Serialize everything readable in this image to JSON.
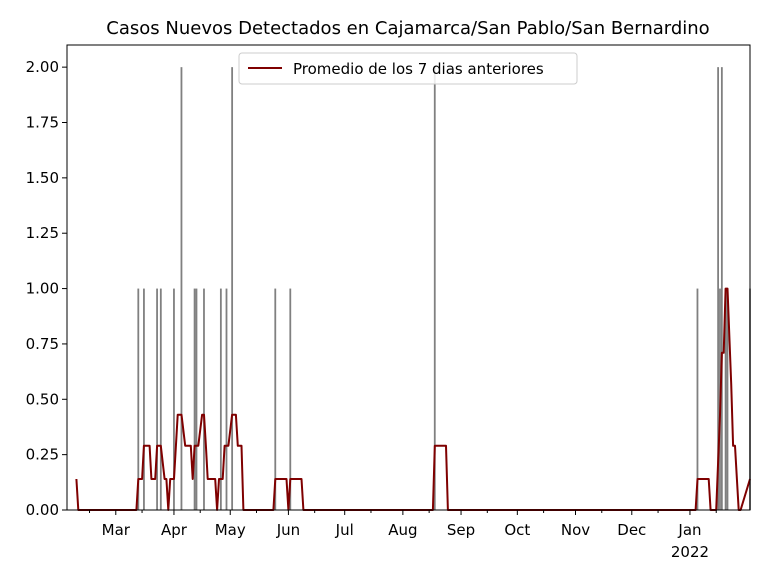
{
  "chart_data": {
    "type": "bar",
    "title": "Casos Nuevos Detectados en Cajamarca/San Pablo/San Bernardino",
    "xlabel": "",
    "ylabel": "",
    "x_range": [
      "2021-02-03",
      "2022-02-02"
    ],
    "ylim": [
      0,
      2.1
    ],
    "y_ticks": [
      "0.00",
      "0.25",
      "0.50",
      "0.75",
      "1.00",
      "1.25",
      "1.50",
      "1.75",
      "2.00"
    ],
    "x_ticks": [
      {
        "date": "2021-03-01",
        "label": "Mar"
      },
      {
        "date": "2021-04-01",
        "label": "Apr"
      },
      {
        "date": "2021-05-01",
        "label": "May"
      },
      {
        "date": "2021-06-01",
        "label": "Jun"
      },
      {
        "date": "2021-07-01",
        "label": "Jul"
      },
      {
        "date": "2021-08-01",
        "label": "Aug"
      },
      {
        "date": "2021-09-01",
        "label": "Sep"
      },
      {
        "date": "2021-10-01",
        "label": "Oct"
      },
      {
        "date": "2021-11-01",
        "label": "Nov"
      },
      {
        "date": "2021-12-01",
        "label": "Dec"
      },
      {
        "date": "2022-01-01",
        "label": "Jan",
        "sublabel": "2022"
      }
    ],
    "grid": false,
    "legend_position": "top-center",
    "bar_color": "#808080",
    "line_color": "#7f0000",
    "bars": {
      "dates": [
        "2021-03-13",
        "2021-03-16",
        "2021-03-23",
        "2021-03-25",
        "2021-04-01",
        "2021-04-05",
        "2021-04-12",
        "2021-04-13",
        "2021-04-17",
        "2021-04-26",
        "2021-04-29",
        "2021-05-02",
        "2021-05-25",
        "2021-06-02",
        "2021-08-18",
        "2022-01-05",
        "2022-01-16",
        "2022-01-17",
        "2022-01-18",
        "2022-01-20",
        "2022-01-21",
        "2022-02-02"
      ],
      "values": [
        1,
        1,
        1,
        1,
        1,
        2,
        1,
        1,
        1,
        1,
        1,
        2,
        1,
        1,
        2,
        1,
        2,
        1,
        2,
        1,
        1,
        1
      ]
    },
    "series": [
      {
        "name": "Promedio de los 7 dias anteriores",
        "type": "line",
        "x": [
          "2021-02-08",
          "2021-02-09",
          "2021-03-12",
          "2021-03-13",
          "2021-03-15",
          "2021-03-16",
          "2021-03-19",
          "2021-03-20",
          "2021-03-22",
          "2021-03-23",
          "2021-03-24",
          "2021-03-25",
          "2021-03-27",
          "2021-03-28",
          "2021-03-29",
          "2021-03-30",
          "2021-04-01",
          "2021-04-03",
          "2021-04-05",
          "2021-04-07",
          "2021-04-08",
          "2021-04-10",
          "2021-04-11",
          "2021-04-12",
          "2021-04-13",
          "2021-04-14",
          "2021-04-16",
          "2021-04-17",
          "2021-04-18",
          "2021-04-19",
          "2021-04-20",
          "2021-04-23",
          "2021-04-24",
          "2021-04-25",
          "2021-04-27",
          "2021-04-28",
          "2021-04-30",
          "2021-05-02",
          "2021-05-04",
          "2021-05-05",
          "2021-05-07",
          "2021-05-08",
          "2021-05-24",
          "2021-05-25",
          "2021-05-31",
          "2021-06-01",
          "2021-06-02",
          "2021-06-08",
          "2021-06-09",
          "2021-08-17",
          "2021-08-18",
          "2021-08-24",
          "2021-08-25",
          "2022-01-04",
          "2022-01-05",
          "2022-01-11",
          "2022-01-12",
          "2022-01-15",
          "2022-01-17",
          "2022-01-18",
          "2022-01-19",
          "2022-01-20",
          "2022-01-21",
          "2022-01-23",
          "2022-01-24",
          "2022-01-25",
          "2022-01-26",
          "2022-01-27",
          "2022-01-28",
          "2022-02-02"
        ],
        "y": [
          0.14,
          0.0,
          0.0,
          0.14,
          0.14,
          0.29,
          0.29,
          0.14,
          0.14,
          0.29,
          0.29,
          0.29,
          0.14,
          0.14,
          0.0,
          0.14,
          0.14,
          0.43,
          0.43,
          0.29,
          0.29,
          0.29,
          0.14,
          0.29,
          0.29,
          0.29,
          0.43,
          0.43,
          0.29,
          0.14,
          0.14,
          0.14,
          0.0,
          0.14,
          0.14,
          0.29,
          0.29,
          0.43,
          0.43,
          0.29,
          0.29,
          0.0,
          0.0,
          0.14,
          0.14,
          0.0,
          0.14,
          0.14,
          0.0,
          0.0,
          0.29,
          0.29,
          0.0,
          0.0,
          0.14,
          0.14,
          0.0,
          0.0,
          0.43,
          0.71,
          0.71,
          1.0,
          1.0,
          0.57,
          0.29,
          0.29,
          0.14,
          0.0,
          0.0,
          0.14
        ]
      }
    ]
  }
}
